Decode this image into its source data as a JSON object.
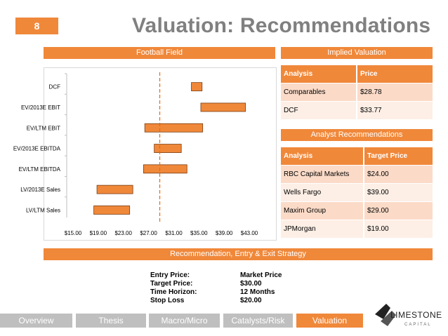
{
  "slide_number": "8",
  "title": "Valuation: Recommendations",
  "football_field": {
    "header": "Football Field",
    "chart_data": {
      "type": "bar",
      "orientation": "horizontal-range",
      "categories": [
        "DCF",
        "EV/2013E EBIT",
        "EV/LTM EBIT",
        "EV/2013E EBITDA",
        "EV/LTM EBITDA",
        "LV/2013E Sales",
        "LV/LTM Sales"
      ],
      "series": [
        {
          "values": [
            [
              33.8,
              35.5
            ],
            [
              35.3,
              42.4
            ],
            [
              26.4,
              35.6
            ],
            [
              27.9,
              32.2
            ],
            [
              26.2,
              33.1
            ],
            [
              18.8,
              24.5
            ],
            [
              18.3,
              24.0
            ]
          ]
        }
      ],
      "reference_line": 28.78,
      "xticks": [
        "$15.00",
        "$19.00",
        "$23.00",
        "$27.00",
        "$31.00",
        "$35.00",
        "$39.00",
        "$43.00"
      ],
      "xlim": [
        15,
        43
      ],
      "bar_color": "#F0883A",
      "title": "",
      "xlabel": "",
      "ylabel": ""
    }
  },
  "implied_valuation": {
    "header": "Implied Valuation",
    "columns": [
      "Analysis",
      "Price"
    ],
    "rows": [
      {
        "analysis": "Comparables",
        "price": "$28.78"
      },
      {
        "analysis": "DCF",
        "price": "$33.77"
      }
    ]
  },
  "analyst_recommendations": {
    "header": "Analyst Recommendations",
    "columns": [
      "Analysis",
      "Target Price"
    ],
    "rows": [
      {
        "analysis": "RBC Capital Markets",
        "price": "$24.00"
      },
      {
        "analysis": "Wells Fargo",
        "price": "$39.00"
      },
      {
        "analysis": "Maxim Group",
        "price": "$29.00"
      },
      {
        "analysis": "JPMorgan",
        "price": "$19.00"
      }
    ]
  },
  "strategy": {
    "header": "Recommendation, Entry & Exit Strategy",
    "items": [
      {
        "label": "Entry Price:",
        "value": "Market Price"
      },
      {
        "label": "Target Price:",
        "value": "$30.00"
      },
      {
        "label": "Time Horizon:",
        "value": "12 Months"
      },
      {
        "label": "Stop Loss",
        "value": "$20.00"
      }
    ]
  },
  "nav": [
    {
      "label": "Overview",
      "active": false
    },
    {
      "label": "Thesis",
      "active": false
    },
    {
      "label": "Macro/Micro",
      "active": false
    },
    {
      "label": "Catalysts/Risk",
      "active": false
    },
    {
      "label": "Valuation",
      "active": true
    }
  ],
  "logo": {
    "line1": "LIMESTONE",
    "line2": "CAPITAL"
  },
  "colors": {
    "accent": "#F0883A",
    "nav_inactive": "#BFBFBF",
    "title": "#808080"
  }
}
